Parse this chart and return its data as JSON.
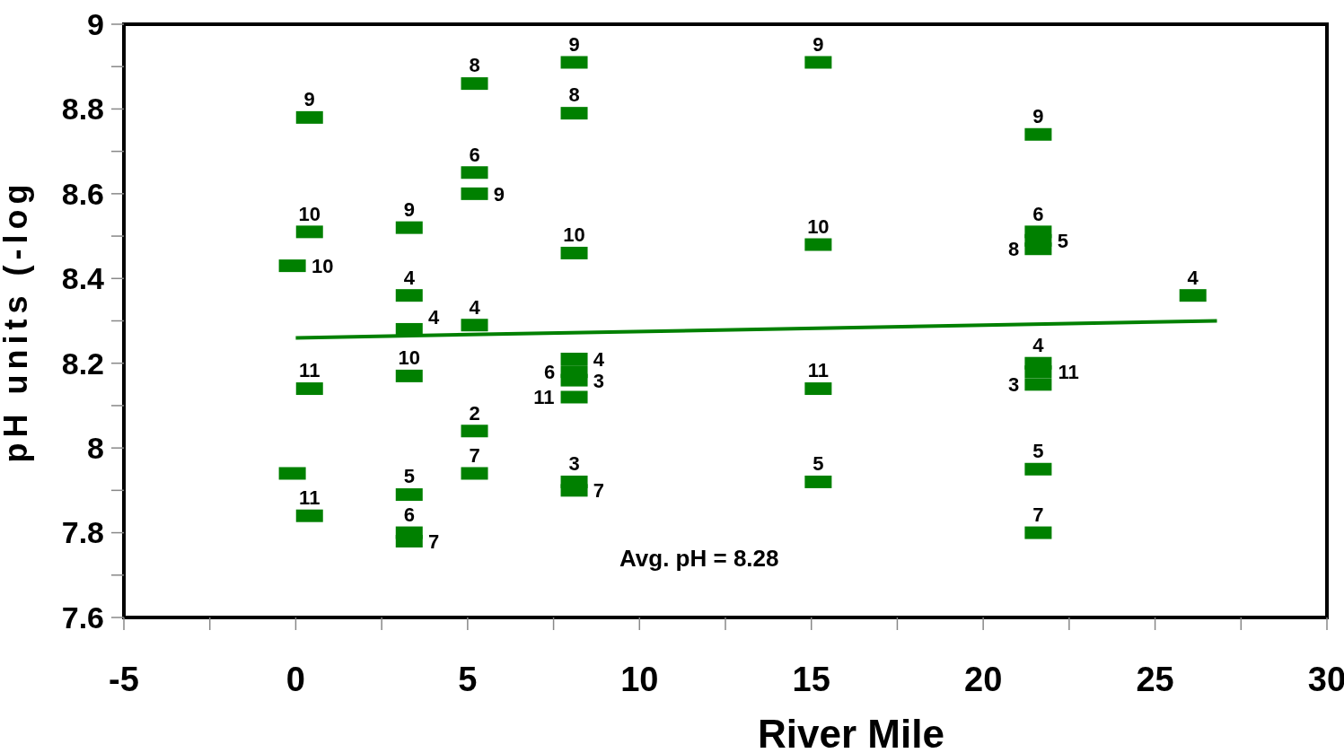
{
  "chart_data": {
    "type": "scatter",
    "xlabel": "River Mile",
    "ylabel": "pH units (-log",
    "xlim": [
      -5,
      30
    ],
    "xticks": [
      -5,
      {
        "value": -2.5,
        "label": null
      },
      0,
      {
        "value": 2.5,
        "label": null
      },
      5,
      {
        "value": 7.5,
        "label": null
      },
      10,
      {
        "value": 12.5,
        "label": null
      },
      15,
      {
        "value": 17.5,
        "label": null
      },
      20,
      {
        "value": 22.5,
        "label": null
      },
      25,
      {
        "value": 27.5,
        "label": null
      },
      30
    ],
    "ylim": [
      7.6,
      9
    ],
    "yticks": [
      7.6,
      {
        "value": 7.7,
        "label": null
      },
      7.8,
      {
        "value": 7.9,
        "label": null
      },
      8,
      {
        "value": 8.1,
        "label": null
      },
      8.2,
      {
        "value": 8.3,
        "label": null
      },
      8.4,
      {
        "value": 8.5,
        "label": null
      },
      8.6,
      {
        "value": 8.7,
        "label": null
      },
      8.8,
      {
        "value": 8.9,
        "label": null
      },
      9
    ],
    "grid": false,
    "marker": "square",
    "annotations": [
      "Avg. pH = 8.28",
      {
        "text": "9",
        "x": 0.4,
        "y": 8.78
      },
      {
        "text": "10",
        "x": 0.4,
        "y": 8.51
      },
      {
        "text": "11",
        "x": 0.4,
        "y": 8.14
      },
      {
        "text": "11",
        "x": 0.4,
        "y": 7.84
      },
      {
        "text": "10",
        "x": -0.1,
        "y": 8.43
      },
      {
        "text": "9",
        "x": 3.3,
        "y": 8.52
      },
      {
        "text": "4",
        "x": 3.3,
        "y": 8.36
      },
      {
        "text": "4",
        "x": 3.3,
        "y": 8.28
      },
      {
        "text": "10",
        "x": 3.3,
        "y": 8.17
      },
      {
        "text": "5",
        "x": 3.3,
        "y": 7.89
      },
      {
        "text": "6",
        "x": 3.3,
        "y": 7.8
      },
      {
        "text": "7",
        "x": 3.3,
        "y": 7.78
      },
      {
        "text": "8",
        "x": 5.2,
        "y": 8.86
      },
      {
        "text": "6",
        "x": 5.2,
        "y": 8.65
      },
      {
        "text": "9",
        "x": 5.2,
        "y": 8.6
      },
      {
        "text": "4",
        "x": 5.2,
        "y": 8.29
      },
      {
        "text": "2",
        "x": 5.2,
        "y": 8.04
      },
      {
        "text": "7",
        "x": 5.2,
        "y": 7.94
      },
      {
        "text": "9",
        "x": 8.1,
        "y": 8.91
      },
      {
        "text": "8",
        "x": 8.1,
        "y": 8.79
      },
      {
        "text": "10",
        "x": 8.1,
        "y": 8.46
      },
      {
        "text": "4",
        "x": 8.1,
        "y": 8.21
      },
      {
        "text": "6",
        "x": 8.1,
        "y": 8.18
      },
      {
        "text": "3",
        "x": 8.1,
        "y": 8.16
      },
      {
        "text": "11",
        "x": 8.1,
        "y": 8.12
      },
      {
        "text": "3",
        "x": 8.1,
        "y": 7.92
      },
      {
        "text": "7",
        "x": 8.1,
        "y": 7.9
      },
      {
        "text": "9",
        "x": 15.2,
        "y": 8.91
      },
      {
        "text": "10",
        "x": 15.2,
        "y": 8.48
      },
      {
        "text": "11",
        "x": 15.2,
        "y": 8.14
      },
      {
        "text": "5",
        "x": 15.2,
        "y": 7.92
      },
      {
        "text": "9",
        "x": 21.6,
        "y": 8.74
      },
      {
        "text": "6",
        "x": 21.6,
        "y": 8.51
      },
      {
        "text": "5",
        "x": 21.6,
        "y": 8.49
      },
      {
        "text": "8",
        "x": 21.6,
        "y": 8.47
      },
      {
        "text": "4",
        "x": 21.6,
        "y": 8.2
      },
      {
        "text": "11",
        "x": 21.6,
        "y": 8.18
      },
      {
        "text": "3",
        "x": 21.6,
        "y": 8.15
      },
      {
        "text": "5",
        "x": 21.6,
        "y": 7.95
      },
      {
        "text": "7",
        "x": 21.6,
        "y": 7.8
      },
      {
        "text": "4",
        "x": 26.1,
        "y": 8.36
      }
    ],
    "series": [
      {
        "color": "#008000",
        "x": [
          0.4,
          0.4,
          0.4,
          0.4,
          -0.1,
          -0.1,
          3.3,
          3.3,
          3.3,
          3.3,
          3.3,
          3.3,
          3.3,
          5.2,
          5.2,
          5.2,
          5.2,
          5.2,
          5.2,
          8.1,
          8.1,
          8.1,
          8.1,
          8.1,
          8.1,
          8.1,
          8.1,
          8.1,
          15.2,
          15.2,
          15.2,
          15.2,
          21.6,
          21.6,
          21.6,
          21.6,
          21.6,
          21.6,
          21.6,
          21.6,
          21.6,
          26.1
        ],
        "values": [
          8.78,
          8.51,
          8.14,
          7.84,
          8.43,
          7.94,
          8.52,
          8.36,
          8.28,
          8.17,
          7.89,
          7.8,
          7.78,
          8.86,
          8.65,
          8.6,
          8.29,
          8.04,
          7.94,
          8.91,
          8.79,
          8.46,
          8.21,
          8.18,
          8.16,
          8.12,
          7.92,
          7.9,
          8.91,
          8.48,
          8.14,
          7.92,
          8.74,
          8.51,
          8.49,
          8.47,
          8.2,
          8.18,
          8.15,
          7.95,
          7.8,
          8.36
        ]
      },
      {
        "type": "line",
        "color": "#008000",
        "x": [
          0,
          26.8
        ],
        "values": [
          8.26,
          8.3
        ],
        "line_style": "solid",
        "marker": "none"
      }
    ]
  }
}
